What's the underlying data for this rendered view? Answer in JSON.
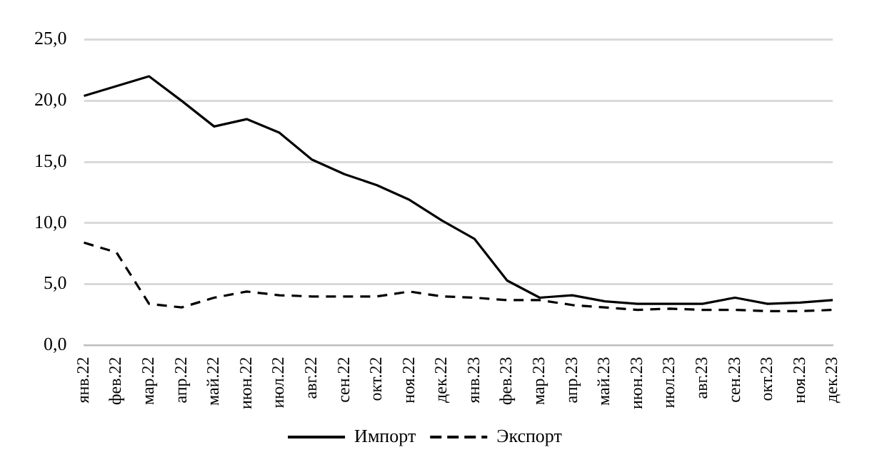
{
  "chart_data": {
    "type": "line",
    "categories": [
      "янв.22",
      "фев.22",
      "мар.22",
      "апр.22",
      "май.22",
      "июн.22",
      "июл.22",
      "авг.22",
      "сен.22",
      "окт.22",
      "ноя.22",
      "дек.22",
      "янв.23",
      "фев.23",
      "мар.23",
      "апр.23",
      "май.23",
      "июн.23",
      "июл.23",
      "авг.23",
      "сен.23",
      "окт.23",
      "ноя.23",
      "дек.23"
    ],
    "series": [
      {
        "name": "Импорт",
        "color": "#000000",
        "line_style": "solid",
        "values": [
          20.4,
          21.2,
          22.0,
          20.0,
          17.9,
          18.5,
          17.4,
          15.2,
          14.0,
          13.1,
          11.9,
          10.2,
          8.7,
          5.3,
          3.9,
          4.1,
          3.6,
          3.4,
          3.4,
          3.4,
          3.9,
          3.4,
          3.5,
          3.7
        ]
      },
      {
        "name": "Экспорт",
        "color": "#000000",
        "line_style": "dashed",
        "values": [
          8.4,
          7.6,
          3.4,
          3.1,
          3.9,
          4.4,
          4.1,
          4.0,
          4.0,
          4.0,
          4.4,
          4.0,
          3.9,
          3.7,
          3.7,
          3.3,
          3.1,
          2.9,
          3.0,
          2.9,
          2.9,
          2.8,
          2.8,
          2.9
        ]
      }
    ],
    "ylim": [
      0,
      25
    ],
    "yticks": [
      {
        "value": 0,
        "label": "0,0"
      },
      {
        "value": 5,
        "label": "5,0"
      },
      {
        "value": 10,
        "label": "10,0"
      },
      {
        "value": 15,
        "label": "15,0"
      },
      {
        "value": 20,
        "label": "20,0"
      },
      {
        "value": 25,
        "label": "25,0"
      }
    ],
    "grid": "y",
    "legend": "bottom",
    "marker": "none"
  }
}
